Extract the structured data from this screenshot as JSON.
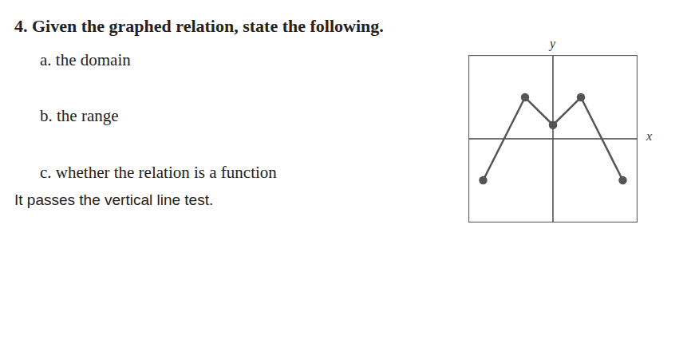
{
  "document": {
    "question": "4. Given the graphed relation, state the following.",
    "parts": [
      "a. the domain",
      "b. the range",
      "c. whether the relation is a function"
    ],
    "answer": "It passes the vertical line test."
  },
  "chart_data": {
    "type": "line",
    "x_label": "x",
    "y_label": "y",
    "x": [
      -5,
      -2,
      0,
      2,
      5
    ],
    "values": [
      -3,
      3,
      1,
      3,
      -3
    ],
    "xlim": [
      -6,
      6
    ],
    "ylim": [
      -6,
      6
    ],
    "xticks": [
      -6,
      -5,
      -4,
      -3,
      -2,
      -1,
      0,
      1,
      2,
      3,
      4,
      5,
      6
    ],
    "yticks": [
      -6,
      -5,
      -4,
      -3,
      -2,
      -1,
      0,
      1,
      2,
      3,
      4,
      5,
      6
    ],
    "grid": true,
    "tick_labels": false,
    "marker": "circle",
    "color": "#555555"
  }
}
